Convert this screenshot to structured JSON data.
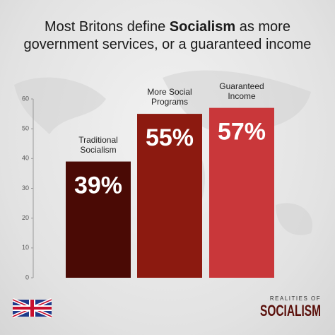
{
  "chart_data": {
    "type": "bar",
    "title": [
      "Most Britons define ",
      "Socialism",
      " as more government services, or a guaranteed income"
    ],
    "categories": [
      "Traditional Socialism",
      "More Social Programs",
      "Guaranteed Income"
    ],
    "values": [
      39,
      55,
      57
    ],
    "value_labels": [
      "39%",
      "55%",
      "57%"
    ],
    "colors": [
      "#4a0a05",
      "#8c1a10",
      "#c9373a"
    ],
    "ylim": [
      0,
      60
    ],
    "yticks": [
      0,
      10,
      20,
      30,
      40,
      50,
      60
    ]
  },
  "branding": {
    "line1": "REALITIES OF",
    "line2": "SOCIALISM"
  }
}
